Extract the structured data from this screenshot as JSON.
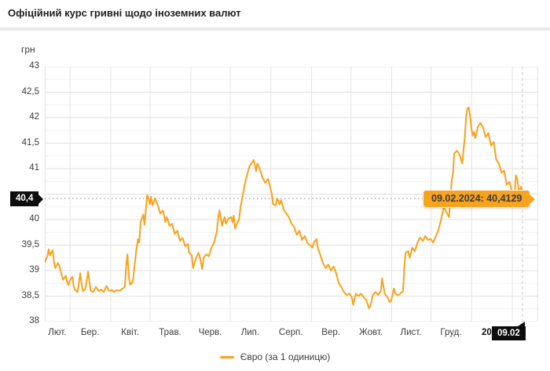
{
  "header": {
    "title": "Офіційний курс гривні щодо іноземних валют"
  },
  "axis": {
    "unit_label": "грн"
  },
  "markers": {
    "y_axis_badge": "40,4",
    "x_axis_badge": "09.02",
    "tooltip_text": "09.02.2024: 40,4129"
  },
  "legend": {
    "label": "Євро (за 1 одиницю)"
  },
  "colors": {
    "line": "#f8a21d",
    "tooltip_bg": "#f8a21d",
    "badge_bg": "#0d0d0d",
    "grid_major": "#e0e0e0",
    "grid_minor": "#f0f0f0",
    "grid_vertical": "#e4e4e4",
    "dashed_current": "#c9c9c9",
    "dotted_marker": "#b0b0b0"
  },
  "chart_data": {
    "type": "line",
    "title": "Офіційний курс гривні щодо іноземних валют",
    "ylabel": "грн",
    "series_name": "Євро (за 1 одиницю)",
    "ylim": [
      38,
      43
    ],
    "y_major_step": 0.5,
    "y_minor_step": 0.25,
    "y_tick_labels": [
      [
        43,
        "43"
      ],
      [
        42.5,
        "42,5"
      ],
      [
        42,
        "42"
      ],
      [
        41.5,
        "41,5"
      ],
      [
        41,
        "41"
      ],
      [
        40,
        "40"
      ],
      [
        39.5,
        "39,5"
      ],
      [
        39,
        "39"
      ],
      [
        38.5,
        "38,5"
      ],
      [
        38,
        "38"
      ]
    ],
    "x_tick_labels": [
      {
        "label": "Лют.",
        "bold": false
      },
      {
        "label": "Бер.",
        "bold": false
      },
      {
        "label": "Квіт.",
        "bold": false
      },
      {
        "label": "Трав.",
        "bold": false
      },
      {
        "label": "Черв.",
        "bold": false
      },
      {
        "label": "Лип.",
        "bold": false
      },
      {
        "label": "Серп.",
        "bold": false
      },
      {
        "label": "Вер.",
        "bold": false
      },
      {
        "label": "Жовт.",
        "bold": false
      },
      {
        "label": "Лист.",
        "bold": false
      },
      {
        "label": "Груд.",
        "bold": false
      },
      {
        "label": "2024",
        "bold": true
      }
    ],
    "month_start_days": [
      0,
      19,
      50,
      80,
      111,
      141,
      172,
      203,
      233,
      264,
      294,
      325,
      356
    ],
    "total_days": 364,
    "current_point": {
      "date": "09.02.2024",
      "value": 40.4129,
      "rounded_label": "40,4"
    },
    "points": [
      [
        0,
        39.17
      ],
      [
        2,
        39.28
      ],
      [
        3,
        39.42
      ],
      [
        4,
        39.3
      ],
      [
        6,
        39.4
      ],
      [
        7,
        39.18
      ],
      [
        8,
        39.05
      ],
      [
        10,
        39.15
      ],
      [
        11,
        39.1
      ],
      [
        13,
        38.9
      ],
      [
        14,
        38.82
      ],
      [
        16,
        38.9
      ],
      [
        17,
        38.78
      ],
      [
        18,
        38.72
      ],
      [
        19,
        38.8
      ],
      [
        21,
        38.88
      ],
      [
        22,
        38.7
      ],
      [
        23,
        38.62
      ],
      [
        25,
        38.58
      ],
      [
        27,
        38.95
      ],
      [
        28,
        38.75
      ],
      [
        29,
        38.6
      ],
      [
        31,
        38.64
      ],
      [
        33,
        38.98
      ],
      [
        34,
        38.78
      ],
      [
        35,
        38.6
      ],
      [
        37,
        38.58
      ],
      [
        39,
        38.68
      ],
      [
        41,
        38.6
      ],
      [
        43,
        38.63
      ],
      [
        45,
        38.58
      ],
      [
        47,
        38.7
      ],
      [
        49,
        38.6
      ],
      [
        51,
        38.62
      ],
      [
        53,
        38.58
      ],
      [
        55,
        38.62
      ],
      [
        57,
        38.6
      ],
      [
        59,
        38.64
      ],
      [
        61,
        38.68
      ],
      [
        62,
        39.1
      ],
      [
        63,
        39.32
      ],
      [
        64,
        38.9
      ],
      [
        65,
        38.72
      ],
      [
        67,
        38.78
      ],
      [
        68,
        39.0
      ],
      [
        70,
        39.45
      ],
      [
        71,
        39.62
      ],
      [
        72,
        39.55
      ],
      [
        73,
        39.95
      ],
      [
        75,
        40.1
      ],
      [
        76,
        39.9
      ],
      [
        77,
        40.2
      ],
      [
        78,
        40.48
      ],
      [
        79,
        40.42
      ],
      [
        80,
        40.3
      ],
      [
        81,
        40.45
      ],
      [
        82,
        40.28
      ],
      [
        84,
        40.42
      ],
      [
        85,
        40.35
      ],
      [
        86,
        40.3
      ],
      [
        88,
        40.12
      ],
      [
        90,
        40.18
      ],
      [
        92,
        39.95
      ],
      [
        93,
        40.05
      ],
      [
        95,
        39.88
      ],
      [
        97,
        39.92
      ],
      [
        99,
        39.72
      ],
      [
        101,
        39.78
      ],
      [
        103,
        39.58
      ],
      [
        105,
        39.64
      ],
      [
        107,
        39.48
      ],
      [
        109,
        39.52
      ],
      [
        110,
        39.35
      ],
      [
        112,
        39.3
      ],
      [
        113,
        39.05
      ],
      [
        115,
        39.22
      ],
      [
        117,
        39.35
      ],
      [
        118,
        39.28
      ],
      [
        120,
        39.03
      ],
      [
        121,
        39.25
      ],
      [
        123,
        39.32
      ],
      [
        125,
        39.28
      ],
      [
        127,
        39.45
      ],
      [
        129,
        39.55
      ],
      [
        131,
        39.75
      ],
      [
        132,
        40.0
      ],
      [
        133,
        40.18
      ],
      [
        134,
        40.05
      ],
      [
        135,
        39.88
      ],
      [
        137,
        40.05
      ],
      [
        138,
        39.92
      ],
      [
        140,
        40.02
      ],
      [
        142,
        40.05
      ],
      [
        143,
        39.95
      ],
      [
        144,
        40.08
      ],
      [
        145,
        39.82
      ],
      [
        146,
        39.9
      ],
      [
        148,
        40.0
      ],
      [
        149,
        40.22
      ],
      [
        151,
        40.5
      ],
      [
        153,
        40.78
      ],
      [
        155,
        40.95
      ],
      [
        156,
        41.05
      ],
      [
        158,
        41.12
      ],
      [
        159,
        41.17
      ],
      [
        160,
        41.08
      ],
      [
        161,
        40.95
      ],
      [
        162,
        41.1
      ],
      [
        163,
        41.05
      ],
      [
        165,
        40.9
      ],
      [
        166,
        40.82
      ],
      [
        168,
        40.72
      ],
      [
        170,
        40.8
      ],
      [
        171,
        40.72
      ],
      [
        173,
        40.5
      ],
      [
        174,
        40.3
      ],
      [
        176,
        40.28
      ],
      [
        177,
        40.42
      ],
      [
        179,
        40.3
      ],
      [
        180,
        40.38
      ],
      [
        182,
        40.2
      ],
      [
        184,
        40.12
      ],
      [
        186,
        40.05
      ],
      [
        188,
        39.92
      ],
      [
        190,
        39.85
      ],
      [
        192,
        39.7
      ],
      [
        194,
        39.78
      ],
      [
        196,
        39.6
      ],
      [
        198,
        39.68
      ],
      [
        200,
        39.55
      ],
      [
        202,
        39.5
      ],
      [
        204,
        39.45
      ],
      [
        205,
        39.55
      ],
      [
        207,
        39.62
      ],
      [
        208,
        39.45
      ],
      [
        210,
        39.3
      ],
      [
        212,
        39.15
      ],
      [
        214,
        39.05
      ],
      [
        216,
        39.12
      ],
      [
        218,
        39.0
      ],
      [
        220,
        39.08
      ],
      [
        222,
        38.95
      ],
      [
        224,
        38.75
      ],
      [
        226,
        38.68
      ],
      [
        228,
        38.58
      ],
      [
        230,
        38.52
      ],
      [
        232,
        38.55
      ],
      [
        234,
        38.48
      ],
      [
        235,
        38.33
      ],
      [
        237,
        38.55
      ],
      [
        239,
        38.5
      ],
      [
        241,
        38.55
      ],
      [
        243,
        38.48
      ],
      [
        245,
        38.42
      ],
      [
        247,
        38.26
      ],
      [
        248,
        38.3
      ],
      [
        250,
        38.52
      ],
      [
        252,
        38.58
      ],
      [
        254,
        38.52
      ],
      [
        256,
        38.6
      ],
      [
        257,
        38.85
      ],
      [
        259,
        38.55
      ],
      [
        261,
        38.48
      ],
      [
        263,
        38.38
      ],
      [
        264,
        38.42
      ],
      [
        266,
        38.65
      ],
      [
        267,
        38.55
      ],
      [
        269,
        38.52
      ],
      [
        271,
        38.55
      ],
      [
        273,
        38.6
      ],
      [
        274,
        39.1
      ],
      [
        275,
        39.35
      ],
      [
        277,
        39.38
      ],
      [
        278,
        39.25
      ],
      [
        280,
        39.45
      ],
      [
        282,
        39.38
      ],
      [
        284,
        39.55
      ],
      [
        286,
        39.65
      ],
      [
        288,
        39.58
      ],
      [
        290,
        39.68
      ],
      [
        292,
        39.6
      ],
      [
        294,
        39.62
      ],
      [
        296,
        39.55
      ],
      [
        298,
        39.68
      ],
      [
        300,
        39.8
      ],
      [
        302,
        40.0
      ],
      [
        304,
        40.25
      ],
      [
        306,
        40.15
      ],
      [
        308,
        40.05
      ],
      [
        309,
        40.4
      ],
      [
        310,
        40.75
      ],
      [
        311,
        40.9
      ],
      [
        312,
        41.3
      ],
      [
        314,
        41.35
      ],
      [
        316,
        41.28
      ],
      [
        318,
        41.1
      ],
      [
        320,
        41.6
      ],
      [
        321,
        42.0
      ],
      [
        322,
        42.18
      ],
      [
        323,
        42.2
      ],
      [
        324,
        42.05
      ],
      [
        325,
        41.8
      ],
      [
        326,
        41.65
      ],
      [
        327,
        41.72
      ],
      [
        328,
        41.6
      ],
      [
        330,
        41.82
      ],
      [
        332,
        41.9
      ],
      [
        334,
        41.8
      ],
      [
        336,
        41.62
      ],
      [
        338,
        41.7
      ],
      [
        340,
        41.45
      ],
      [
        342,
        41.52
      ],
      [
        344,
        41.18
      ],
      [
        346,
        41.1
      ],
      [
        348,
        40.92
      ],
      [
        350,
        40.96
      ],
      [
        352,
        40.68
      ],
      [
        354,
        40.74
      ],
      [
        356,
        40.55
      ],
      [
        357,
        40.46
      ],
      [
        358,
        40.52
      ],
      [
        359,
        40.87
      ],
      [
        360,
        40.8
      ],
      [
        361,
        40.6
      ],
      [
        362,
        40.55
      ],
      [
        363,
        40.65
      ],
      [
        364,
        40.4129
      ]
    ]
  }
}
